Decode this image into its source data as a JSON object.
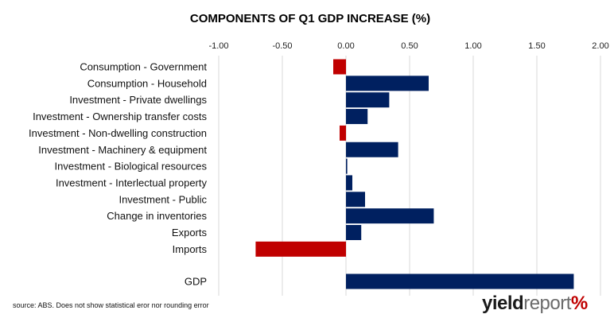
{
  "chart_data": {
    "type": "bar",
    "orientation": "horizontal",
    "title": "COMPONENTS OF Q1 GDP INCREASE (%)",
    "xlim": [
      -1.0,
      2.0
    ],
    "ticks": [
      "-1.00",
      "-0.50",
      "0.00",
      "0.50",
      "1.00",
      "1.50",
      "2.00"
    ],
    "tick_values": [
      -1.0,
      -0.5,
      0.0,
      0.5,
      1.0,
      1.5,
      2.0
    ],
    "grid": true,
    "categories": [
      "Consumption - Government",
      "Consumption - Household",
      "Investment - Private dwellings",
      "Investment - Ownership transfer costs",
      "Investment - Non-dwelling construction",
      "Investment - Machinery & equipment",
      "Investment - Biological resources",
      "Investment - Interlectual property",
      "Investment - Public",
      "Change in inventories",
      "Exports",
      "Imports",
      "GDP"
    ],
    "values": [
      -0.1,
      0.65,
      0.34,
      0.17,
      -0.05,
      0.41,
      0.01,
      0.05,
      0.15,
      0.69,
      0.12,
      -0.71,
      1.79
    ],
    "colors": {
      "positive": "#002060",
      "negative": "#c00000"
    }
  },
  "source_note": "source: ABS. Does not show statistical eror nor rounding error",
  "logo": {
    "part1": "yield",
    "part2": "report",
    "part3": "%"
  }
}
